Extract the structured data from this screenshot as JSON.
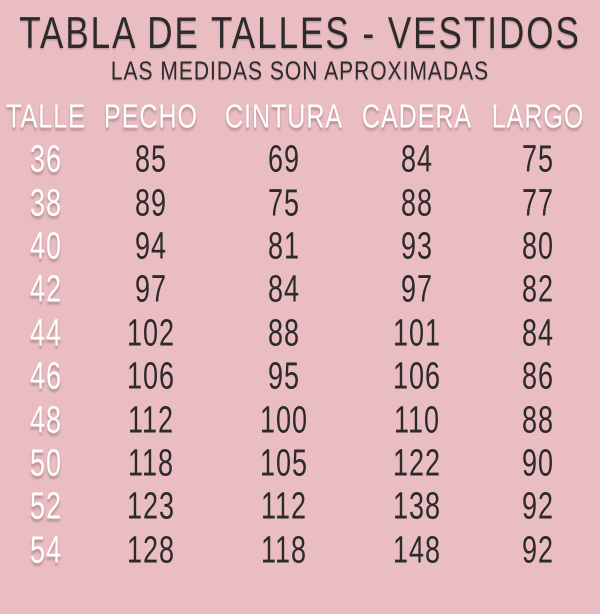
{
  "page": {
    "background_color": "#e9bdc1",
    "dark_text_color": "#2d2a2b",
    "light_text_color": "#ffffff"
  },
  "chart_data": {
    "type": "table",
    "title": "TABLA DE TALLES - VESTIDOS",
    "subtitle": "LAS MEDIDAS SON APROXIMADAS",
    "columns": [
      "TALLE",
      "PECHO",
      "CINTURA",
      "CADERA",
      "LARGO"
    ],
    "rows": [
      [
        "36",
        "85",
        "69",
        "84",
        "75"
      ],
      [
        "38",
        "89",
        "75",
        "88",
        "77"
      ],
      [
        "40",
        "94",
        "81",
        "93",
        "80"
      ],
      [
        "42",
        "97",
        "84",
        "97",
        "82"
      ],
      [
        "44",
        "102",
        "88",
        "101",
        "84"
      ],
      [
        "46",
        "106",
        "95",
        "106",
        "86"
      ],
      [
        "48",
        "112",
        "100",
        "110",
        "88"
      ],
      [
        "50",
        "118",
        "105",
        "122",
        "90"
      ],
      [
        "52",
        "123",
        "112",
        "138",
        "92"
      ],
      [
        "54",
        "128",
        "118",
        "148",
        "92"
      ]
    ]
  }
}
